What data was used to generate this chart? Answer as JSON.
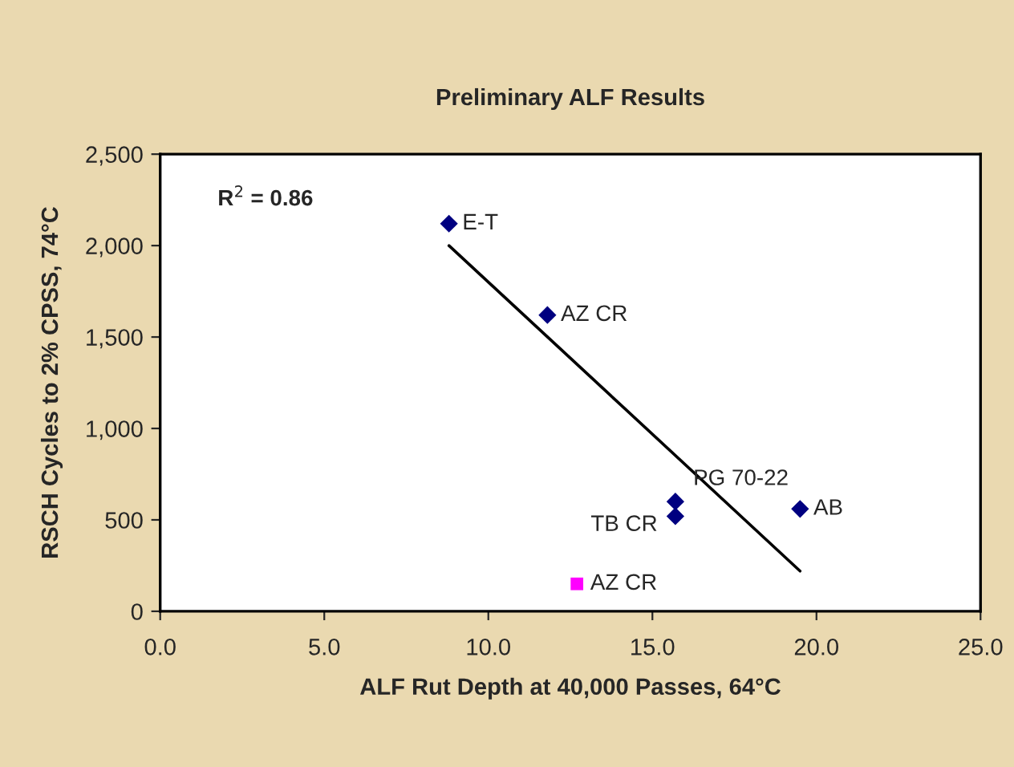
{
  "chart_data": {
    "type": "scatter",
    "title": "Preliminary ALF Results",
    "xlabel": "ALF Rut Depth at 40,000 Passes, 64°C",
    "ylabel": "RSCH Cycles to 2% CPSS, 74°C",
    "series": [
      {
        "color": "#000080",
        "marker": "diamond",
        "x": [
          8.8,
          11.8,
          15.7,
          15.7,
          19.5
        ],
        "values": [
          2120,
          1620,
          600,
          520,
          560
        ]
      },
      {
        "color": "#ff00ff",
        "marker": "square",
        "x": [
          12.7
        ],
        "values": [
          150
        ]
      },
      {
        "type": "line",
        "color": "#000000",
        "marker": "none",
        "x": [
          8.8,
          19.5
        ],
        "values": [
          2000,
          220
        ]
      }
    ],
    "annotations": [
      "R$^{2}$ = 0.86",
      {
        "text": "E-T",
        "x": 8.8,
        "y": 2120
      },
      {
        "text": "AZ CR",
        "x": 11.8,
        "y": 1620
      },
      {
        "text": "PG 70-22",
        "x": 15.7,
        "y": 600
      },
      {
        "text": "TB CR",
        "x": 15.7,
        "y": 520
      },
      {
        "text": "AB",
        "x": 19.5,
        "y": 560
      },
      {
        "text": "AZ CR",
        "x": 12.7,
        "y": 150
      }
    ],
    "xlim": [
      0,
      25
    ],
    "ylim": [
      0,
      2500
    ],
    "xticks": [
      {
        "value": 0,
        "label": "0.0"
      },
      {
        "value": 5,
        "label": "5.0"
      },
      {
        "value": 10,
        "label": "10.0"
      },
      {
        "value": 15,
        "label": "15.0"
      },
      {
        "value": 20,
        "label": "20.0"
      },
      {
        "value": 25,
        "label": "25.0"
      }
    ],
    "yticks": [
      0,
      {
        "value": 500,
        "label": "500"
      },
      {
        "value": 1000,
        "label": "1,000"
      },
      {
        "value": 1500,
        "label": "1,500"
      },
      {
        "value": 2000,
        "label": "2,000"
      },
      {
        "value": 2500,
        "label": "2,500"
      }
    ],
    "grid": false,
    "legend": false
  }
}
